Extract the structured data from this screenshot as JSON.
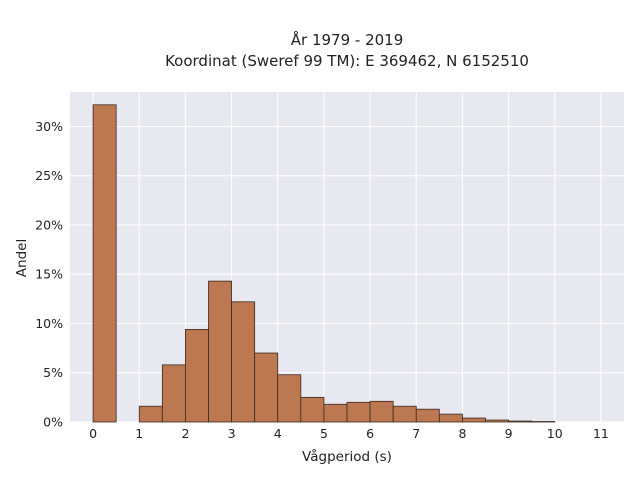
{
  "chart_data": {
    "type": "bar",
    "title_lines": [
      "År 1979 - 2019",
      "Koordinat (Sweref 99 TM): E 369462, N 6152510"
    ],
    "xlabel": "Vågperiod (s)",
    "ylabel": "Andel",
    "x_ticks": [
      "0",
      "1",
      "2",
      "3",
      "4",
      "5",
      "6",
      "7",
      "8",
      "9",
      "10",
      "11"
    ],
    "y_ticks": [
      "0%",
      "5%",
      "10%",
      "15%",
      "20%",
      "25%",
      "30%"
    ],
    "xlim": [
      -0.5,
      11.5
    ],
    "ylim": [
      0,
      33.5
    ],
    "bin_width": 0.5,
    "bins": [
      {
        "x0": 0.0,
        "value": 32.2
      },
      {
        "x0": 1.0,
        "value": 1.6
      },
      {
        "x0": 1.5,
        "value": 5.8
      },
      {
        "x0": 2.0,
        "value": 9.4
      },
      {
        "x0": 2.5,
        "value": 14.3
      },
      {
        "x0": 3.0,
        "value": 12.2
      },
      {
        "x0": 3.5,
        "value": 7.0
      },
      {
        "x0": 4.0,
        "value": 4.8
      },
      {
        "x0": 4.5,
        "value": 2.5
      },
      {
        "x0": 5.0,
        "value": 1.8
      },
      {
        "x0": 5.5,
        "value": 2.0
      },
      {
        "x0": 6.0,
        "value": 2.1
      },
      {
        "x0": 6.5,
        "value": 1.6
      },
      {
        "x0": 7.0,
        "value": 1.3
      },
      {
        "x0": 7.5,
        "value": 0.8
      },
      {
        "x0": 8.0,
        "value": 0.4
      },
      {
        "x0": 8.5,
        "value": 0.2
      },
      {
        "x0": 9.0,
        "value": 0.1
      },
      {
        "x0": 9.5,
        "value": 0.05
      }
    ],
    "grid": true,
    "colors": {
      "bar_fill": "#bc7851",
      "bar_stroke": "#3a2a20",
      "plot_background": "#e8e8f0",
      "grid": "#ffffff"
    }
  }
}
